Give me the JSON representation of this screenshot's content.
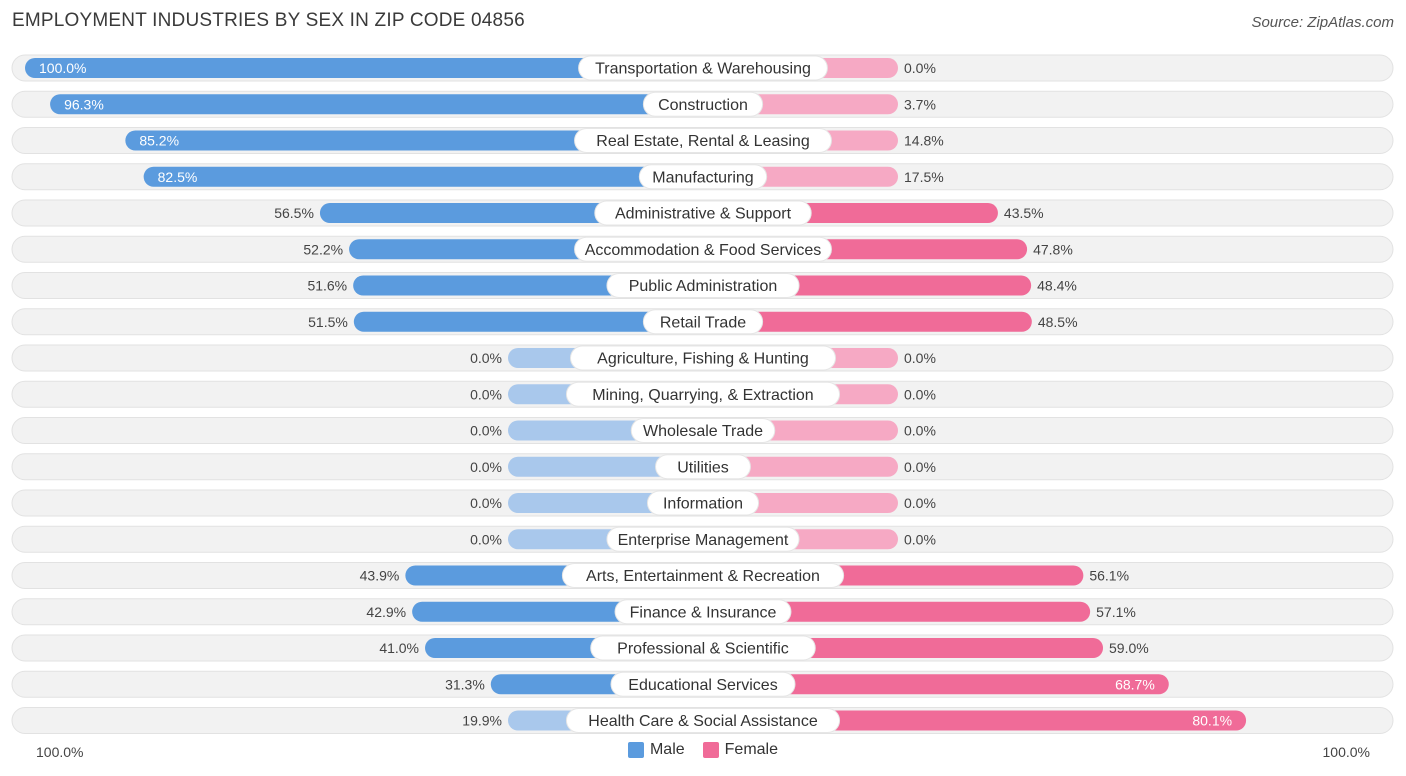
{
  "title": "EMPLOYMENT INDUSTRIES BY SEX IN ZIP CODE 04856",
  "source": "Source: ZipAtlas.com",
  "legend": {
    "male": "Male",
    "female": "Female"
  },
  "axis": {
    "left": "100.0%",
    "right": "100.0%"
  },
  "colors": {
    "male_strong": "#5b9bde",
    "male_light": "#a9c8ec",
    "female_strong": "#f06b98",
    "female_light": "#f6a9c4",
    "row_bg": "#f2f2f2"
  },
  "chart_data": {
    "type": "bar",
    "orientation": "horizontal-diverging",
    "categories": [
      "Transportation & Warehousing",
      "Construction",
      "Real Estate, Rental & Leasing",
      "Manufacturing",
      "Administrative & Support",
      "Accommodation & Food Services",
      "Public Administration",
      "Retail Trade",
      "Agriculture, Fishing & Hunting",
      "Mining, Quarrying, & Extraction",
      "Wholesale Trade",
      "Utilities",
      "Information",
      "Enterprise Management",
      "Arts, Entertainment & Recreation",
      "Finance & Insurance",
      "Professional & Scientific",
      "Educational Services",
      "Health Care & Social Assistance"
    ],
    "series": [
      {
        "name": "Male",
        "values": [
          100.0,
          96.3,
          85.2,
          82.5,
          56.5,
          52.2,
          51.6,
          51.5,
          0.0,
          0.0,
          0.0,
          0.0,
          0.0,
          0.0,
          43.9,
          42.9,
          41.0,
          31.3,
          19.9
        ],
        "labels": [
          "100.0%",
          "96.3%",
          "85.2%",
          "82.5%",
          "56.5%",
          "52.2%",
          "51.6%",
          "51.5%",
          "0.0%",
          "0.0%",
          "0.0%",
          "0.0%",
          "0.0%",
          "0.0%",
          "43.9%",
          "42.9%",
          "41.0%",
          "31.3%",
          "19.9%"
        ]
      },
      {
        "name": "Female",
        "values": [
          0.0,
          3.7,
          14.8,
          17.5,
          43.5,
          47.8,
          48.4,
          48.5,
          0.0,
          0.0,
          0.0,
          0.0,
          0.0,
          0.0,
          56.1,
          57.1,
          59.0,
          68.7,
          80.1
        ],
        "labels": [
          "0.0%",
          "3.7%",
          "14.8%",
          "17.5%",
          "43.5%",
          "47.8%",
          "48.4%",
          "48.5%",
          "0.0%",
          "0.0%",
          "0.0%",
          "0.0%",
          "0.0%",
          "0.0%",
          "56.1%",
          "57.1%",
          "59.0%",
          "68.7%",
          "80.1%"
        ]
      }
    ],
    "xlim": [
      -100,
      100
    ],
    "grid": false,
    "legend_position": "bottom-center"
  }
}
